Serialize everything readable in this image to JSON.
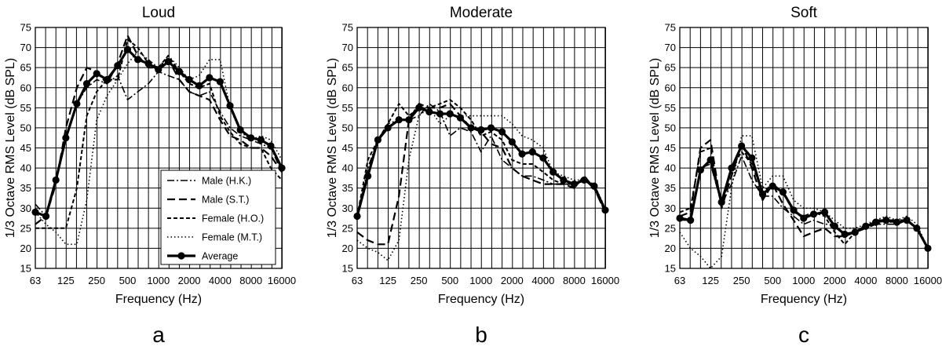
{
  "chart_data": [
    {
      "type": "line",
      "title": "Loud",
      "panel_label": "a",
      "xlabel": "Frequency (Hz)",
      "ylabel": "1/3 Octave RMS Level (dB SPL)",
      "xscale": "log",
      "xlim": [
        63,
        16000
      ],
      "ylim": [
        15,
        75
      ],
      "grid": true,
      "legend": {
        "position": "bottom-right"
      },
      "xticks": [
        "63",
        "125",
        "250",
        "500",
        "1000",
        "2000",
        "4000",
        "8000",
        "16000"
      ],
      "yticks": [
        "15",
        "20",
        "25",
        "30",
        "35",
        "40",
        "45",
        "50",
        "55",
        "60",
        "65",
        "70",
        "75"
      ],
      "x": [
        63,
        80,
        100,
        125,
        160,
        200,
        250,
        315,
        400,
        500,
        630,
        800,
        1000,
        1250,
        1600,
        2000,
        2500,
        3150,
        4000,
        5000,
        6300,
        8000,
        10000,
        12500,
        16000
      ],
      "series": [
        {
          "name": "Male (H.K.)",
          "style": "dashdot",
          "values": [
            31,
            28,
            37,
            47,
            56,
            60,
            62,
            61,
            63,
            57,
            59,
            61,
            64,
            63,
            62,
            59,
            58,
            59,
            54,
            50,
            48,
            47,
            46,
            45,
            39
          ]
        },
        {
          "name": "Male (S.T.)",
          "style": "dash",
          "values": [
            26,
            28,
            36,
            50,
            60,
            65,
            64,
            61,
            66,
            73,
            68,
            65,
            65,
            67,
            62,
            59,
            58,
            57,
            52,
            48,
            47,
            45,
            45,
            43,
            39
          ]
        },
        {
          "name": "Female (H.O.)",
          "style": "shortdash",
          "values": [
            25,
            25,
            25,
            25,
            35,
            53,
            59,
            62,
            62,
            72,
            70,
            66,
            65,
            68,
            64,
            61,
            60,
            61,
            53,
            49,
            46,
            45,
            45,
            40,
            37
          ]
        },
        {
          "name": "Female (M.T.)",
          "style": "dot",
          "values": [
            29,
            26,
            24,
            21,
            21,
            32,
            52,
            58,
            62,
            66,
            69,
            67,
            65,
            68,
            65,
            62,
            63,
            67,
            67,
            55,
            49,
            47,
            48,
            47,
            42
          ]
        },
        {
          "name": "Average",
          "style": "solid-marker",
          "values": [
            29,
            28,
            37,
            47.5,
            56,
            61,
            63.5,
            62,
            65.5,
            69.5,
            67,
            66,
            64.5,
            66.5,
            64,
            62,
            60.5,
            62.5,
            61.5,
            55.5,
            49.5,
            47.5,
            47,
            45.5,
            40
          ]
        }
      ]
    },
    {
      "type": "line",
      "title": "Moderate",
      "panel_label": "b",
      "xlabel": "Frequency (Hz)",
      "ylabel": "1/3 Octave RMS Level (dB SPL)",
      "xscale": "log",
      "xlim": [
        63,
        16000
      ],
      "ylim": [
        15,
        75
      ],
      "grid": true,
      "xticks": [
        "63",
        "125",
        "250",
        "500",
        "1000",
        "2000",
        "4000",
        "8000",
        "16000"
      ],
      "yticks": [
        "15",
        "20",
        "25",
        "30",
        "35",
        "40",
        "45",
        "50",
        "55",
        "60",
        "65",
        "70",
        "75"
      ],
      "x": [
        63,
        80,
        100,
        125,
        160,
        200,
        250,
        315,
        400,
        500,
        630,
        800,
        1000,
        1250,
        1600,
        2000,
        2500,
        3150,
        4000,
        5000,
        6300,
        8000,
        10000,
        12500,
        16000
      ],
      "series": [
        {
          "name": "Male (H.K.)",
          "style": "dashdot",
          "values": [
            28,
            40,
            47,
            51,
            52,
            52,
            53,
            56,
            54,
            48,
            50,
            49,
            44,
            48,
            42,
            40,
            38,
            38,
            37,
            36,
            36,
            36,
            37,
            35,
            29
          ]
        },
        {
          "name": "Male (S.T.)",
          "style": "dash",
          "values": [
            24,
            22,
            21,
            21,
            33,
            52,
            56,
            55,
            55,
            56,
            53,
            50,
            49,
            46,
            45,
            40,
            38,
            37,
            36,
            36,
            36,
            35,
            38,
            35,
            29
          ]
        },
        {
          "name": "Female (H.O.)",
          "style": "shortdash",
          "values": [
            28,
            42,
            47,
            51,
            56,
            53,
            55,
            55,
            56,
            57,
            55,
            52,
            48,
            49,
            47,
            42,
            41,
            41,
            39,
            37,
            36,
            36,
            37,
            35,
            29
          ]
        },
        {
          "name": "Female (M.T.)",
          "style": "dot",
          "values": [
            22,
            20,
            19,
            17,
            22,
            42,
            53,
            55,
            51,
            53,
            53,
            53,
            53,
            53,
            53,
            51,
            48,
            47,
            45,
            39,
            38,
            37,
            37,
            36,
            30
          ]
        },
        {
          "name": "Average",
          "style": "solid-marker",
          "values": [
            28,
            38,
            47,
            50,
            52,
            52,
            55,
            54,
            53.5,
            53.5,
            52.5,
            50,
            49.5,
            50,
            49,
            46.5,
            43.5,
            44,
            42.5,
            39,
            37,
            36,
            37,
            35.5,
            29.5
          ]
        }
      ]
    },
    {
      "type": "line",
      "title": "Soft",
      "panel_label": "c",
      "xlabel": "Frequency (Hz)",
      "ylabel": "1/3 Octave RMS Level (dB SPL)",
      "xscale": "log",
      "xlim": [
        63,
        16000
      ],
      "ylim": [
        15,
        75
      ],
      "grid": true,
      "xticks": [
        "63",
        "125",
        "250",
        "500",
        "1000",
        "2000",
        "4000",
        "8000",
        "16000"
      ],
      "yticks": [
        "15",
        "20",
        "25",
        "30",
        "35",
        "40",
        "45",
        "50",
        "55",
        "60",
        "65",
        "70",
        "75"
      ],
      "x": [
        63,
        80,
        100,
        125,
        160,
        200,
        250,
        315,
        400,
        500,
        630,
        800,
        1000,
        1250,
        1600,
        2000,
        2500,
        3150,
        4000,
        5000,
        6300,
        8000,
        10000,
        12500,
        16000
      ],
      "series": [
        {
          "name": "Male (H.K.)",
          "style": "dashdot",
          "values": [
            27,
            27,
            40,
            41,
            31,
            36,
            43,
            37,
            33,
            33,
            30,
            28,
            26,
            27,
            26,
            26,
            23,
            24,
            26,
            26,
            26,
            26,
            27,
            25,
            20
          ]
        },
        {
          "name": "Male (S.T.)",
          "style": "dash",
          "values": [
            28,
            29,
            45,
            47,
            30,
            38,
            46,
            40,
            32,
            36,
            31,
            27,
            23,
            24,
            25,
            23,
            23,
            24,
            25,
            27,
            27,
            27,
            27,
            25,
            20
          ]
        },
        {
          "name": "Female (H.O.)",
          "style": "shortdash",
          "values": [
            29,
            30,
            44,
            45,
            30,
            40,
            44,
            41,
            34,
            36,
            34,
            29,
            28,
            29,
            28,
            24,
            21,
            24,
            25,
            26,
            27,
            26,
            27,
            25,
            20
          ]
        },
        {
          "name": "Female (M.T.)",
          "style": "dot",
          "values": [
            24,
            20,
            18,
            15,
            18,
            35,
            48,
            48,
            35,
            38,
            38,
            32,
            30,
            30,
            29,
            27,
            25,
            25,
            26,
            27,
            28,
            27,
            28,
            26,
            20
          ]
        },
        {
          "name": "Average",
          "style": "solid-marker",
          "values": [
            27.5,
            27,
            39.5,
            42,
            31.5,
            40,
            45.5,
            42.5,
            33.5,
            35.5,
            34,
            29.5,
            27.5,
            28.5,
            29,
            25.5,
            23.5,
            24,
            25.5,
            26.5,
            27,
            26.5,
            27,
            25,
            20
          ]
        }
      ]
    }
  ]
}
